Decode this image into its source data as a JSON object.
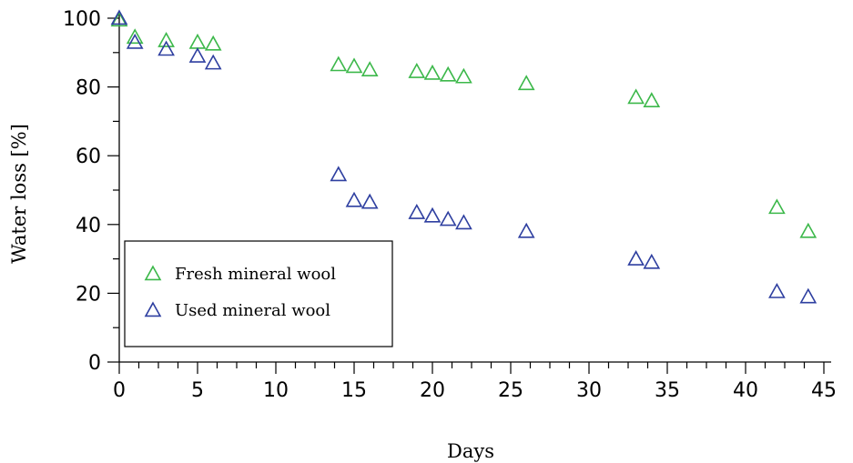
{
  "chart_data": {
    "type": "scatter",
    "title": "",
    "xlabel": "Days",
    "ylabel": "Water loss [%]",
    "xlim": [
      0,
      45
    ],
    "ylim": [
      0,
      100
    ],
    "xticks": [
      0,
      5,
      10,
      15,
      20,
      25,
      30,
      35,
      40,
      45
    ],
    "yticks": [
      0,
      20,
      40,
      60,
      80,
      100
    ],
    "grid": false,
    "legend_position": "bottom-left",
    "marker": "open-triangle",
    "series": [
      {
        "name": "Fresh mineral wool",
        "color": "#3cb84a",
        "x": [
          0,
          1,
          3,
          5,
          6,
          14,
          15,
          16,
          19,
          20,
          21,
          22,
          26,
          33,
          34,
          42,
          44
        ],
        "y": [
          99.5,
          94.5,
          93.5,
          93,
          92.5,
          86.5,
          86,
          85,
          84.5,
          84,
          83.5,
          83,
          81,
          77,
          76,
          45,
          38
        ]
      },
      {
        "name": "Used mineral wool",
        "color": "#2e3fa0",
        "x": [
          0,
          1,
          3,
          5,
          6,
          14,
          15,
          16,
          19,
          20,
          21,
          22,
          26,
          33,
          34,
          42,
          44
        ],
        "y": [
          100,
          93,
          91,
          89,
          87,
          54.5,
          47,
          46.5,
          43.5,
          42.5,
          41.5,
          40.5,
          38,
          30,
          29,
          20.5,
          19
        ]
      }
    ]
  }
}
